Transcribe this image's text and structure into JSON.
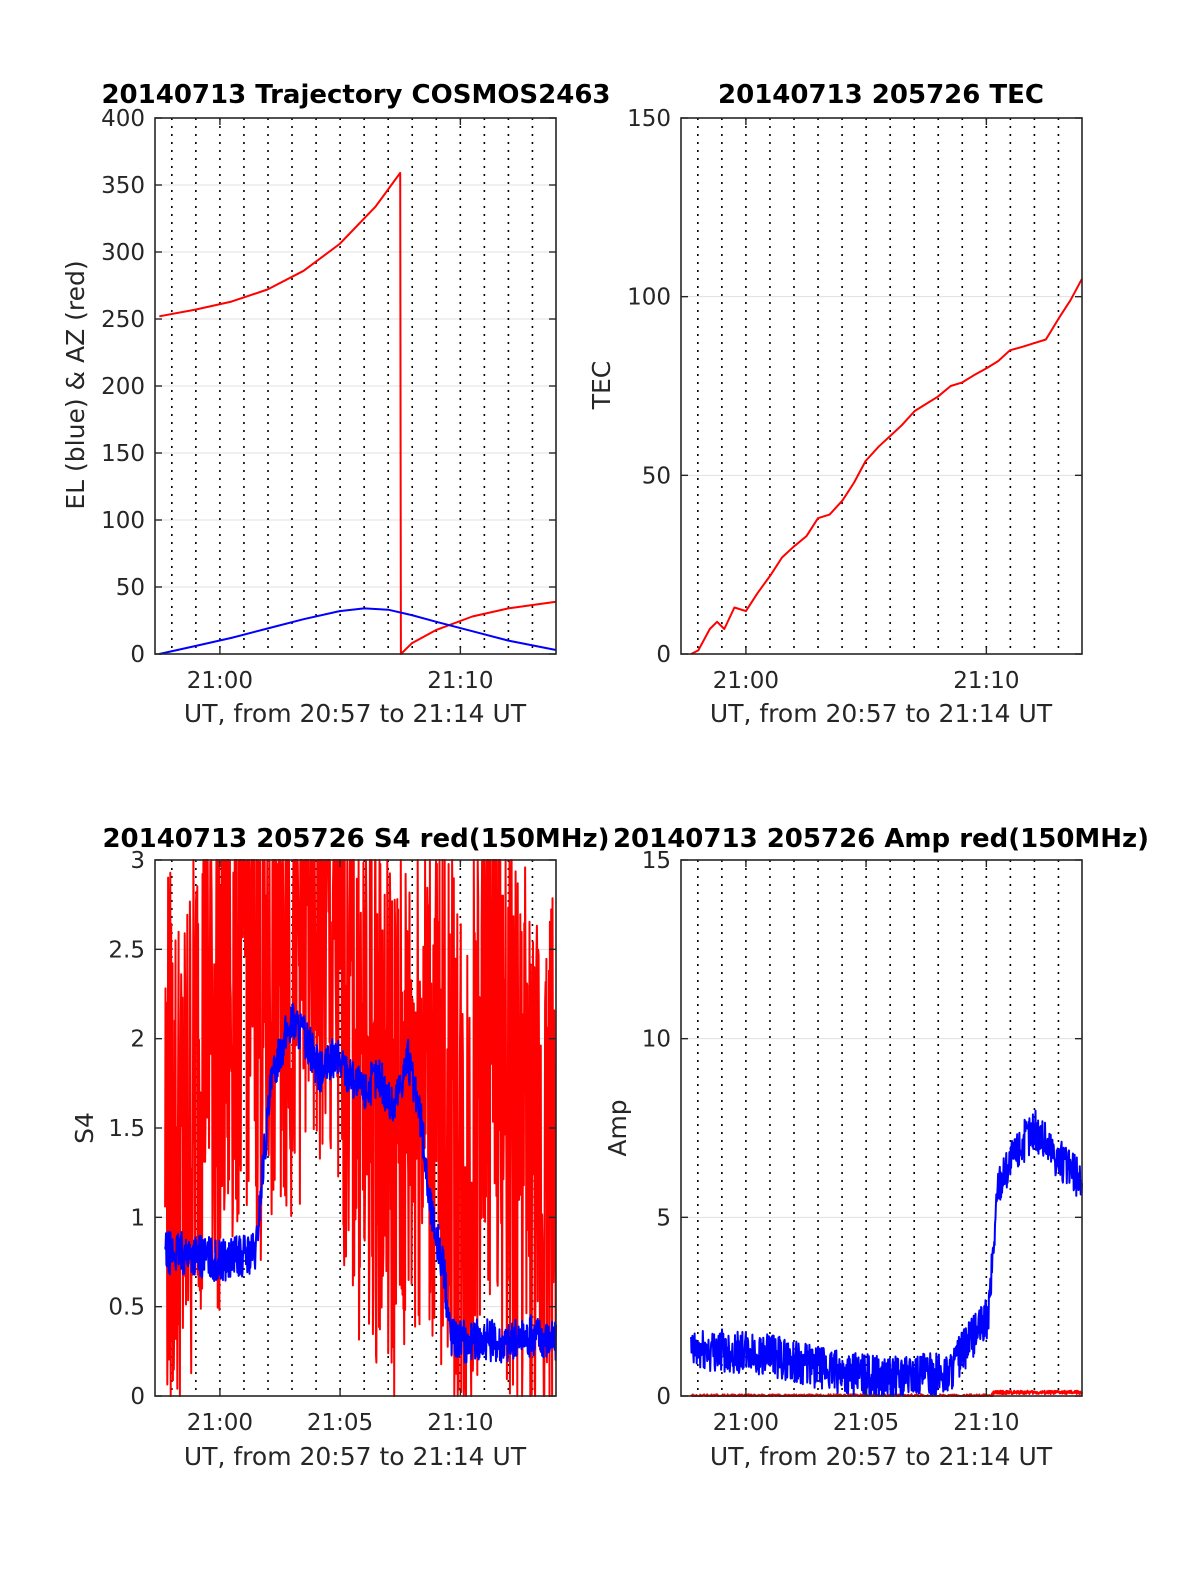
{
  "chart_data": [
    {
      "type": "line",
      "title": "20140713 Trajectory COSMOS2463",
      "xlabel": "UT, from 20:57 to 21:14 UT",
      "ylabel": "EL (blue) & AZ (red)",
      "xlim": [
        20.955,
        21.233
      ],
      "ylim": [
        0,
        400
      ],
      "yticks": [
        0,
        50,
        100,
        150,
        200,
        250,
        300,
        350,
        400
      ],
      "xticks": [
        {
          "v": 21.0,
          "label": "21:00"
        },
        {
          "v": 21.1667,
          "label": "21:10"
        }
      ],
      "grid": true,
      "series": [
        {
          "color": "#ff0000",
          "x": [
            20.958,
            20.983,
            21.008,
            21.033,
            21.058,
            21.083,
            21.108,
            21.125,
            21.1255,
            21.133,
            21.15,
            21.175,
            21.2,
            21.233
          ],
          "y": [
            252,
            257,
            263,
            272,
            286,
            306,
            334,
            359,
            0,
            8,
            18,
            28,
            34,
            39
          ]
        },
        {
          "color": "#0000ff",
          "x": [
            20.958,
            20.983,
            21.008,
            21.033,
            21.058,
            21.083,
            21.1,
            21.117,
            21.133,
            21.15,
            21.175,
            21.2,
            21.233
          ],
          "y": [
            0,
            6,
            12,
            19,
            26,
            32,
            34,
            33,
            29,
            24,
            17,
            10,
            3
          ]
        }
      ]
    },
    {
      "type": "line",
      "title": "20140713 205726 TEC",
      "xlabel": "UT, from 20:57 to 21:14 UT",
      "ylabel": "TEC",
      "xlim": [
        20.955,
        21.233
      ],
      "ylim": [
        0,
        150
      ],
      "yticks": [
        0,
        50,
        100,
        150
      ],
      "xticks": [
        {
          "v": 21.0,
          "label": "21:00"
        },
        {
          "v": 21.1667,
          "label": "21:10"
        }
      ],
      "grid": true,
      "series": [
        {
          "color": "#ff0000",
          "x": [
            20.962,
            20.967,
            20.975,
            20.98,
            20.985,
            20.992,
            21.0,
            21.008,
            21.017,
            21.025,
            21.033,
            21.042,
            21.05,
            21.058,
            21.067,
            21.075,
            21.083,
            21.092,
            21.1,
            21.108,
            21.117,
            21.125,
            21.133,
            21.142,
            21.15,
            21.158,
            21.167,
            21.175,
            21.183,
            21.192,
            21.2,
            21.208,
            21.217,
            21.225,
            21.233
          ],
          "y": [
            0,
            1,
            7,
            9,
            7,
            13,
            12,
            17,
            22,
            27,
            30,
            33,
            38,
            39,
            43,
            48,
            54,
            58,
            61,
            64,
            68,
            70,
            72,
            75,
            76,
            78,
            80,
            82,
            85,
            86,
            87,
            88,
            94,
            99,
            105
          ]
        }
      ]
    },
    {
      "type": "line",
      "title": "20140713 205726 S4 red(150MHz)",
      "xlabel": "UT, from 20:57 to 21:14 UT",
      "ylabel": "S4",
      "xlim": [
        20.955,
        21.233
      ],
      "ylim": [
        0,
        3
      ],
      "yticks": [
        0,
        0.5,
        1,
        1.5,
        2,
        2.5,
        3
      ],
      "xticks": [
        {
          "v": 21.0,
          "label": "21:00"
        },
        {
          "v": 21.0833,
          "label": "21:05"
        },
        {
          "v": 21.1667,
          "label": "21:10"
        }
      ],
      "grid": true,
      "series": [
        {
          "color": "#ff0000",
          "x": [
            20.962,
            20.975,
            20.99,
            21.0,
            21.01,
            21.02,
            21.03,
            21.04,
            21.05,
            21.06,
            21.07,
            21.08,
            21.09,
            21.1,
            21.11,
            21.12,
            21.13,
            21.14,
            21.15,
            21.16,
            21.17,
            21.18,
            21.19,
            21.2,
            21.21,
            21.22,
            21.233
          ],
          "y": [
            1.5,
            1.2,
            2.3,
            2.0,
            2.4,
            2.7,
            2.2,
            2.6,
            2.5,
            2.8,
            2.7,
            2.4,
            2.2,
            1.7,
            1.8,
            1.5,
            1.6,
            2.0,
            1.7,
            1.6,
            1.2,
            1.8,
            2.2,
            1.6,
            1.4,
            1.2,
            1.5
          ],
          "noise": 1.6
        },
        {
          "color": "#0000ff",
          "x": [
            20.962,
            20.975,
            20.99,
            21.0,
            21.01,
            21.025,
            21.03,
            21.035,
            21.04,
            21.05,
            21.06,
            21.07,
            21.08,
            21.09,
            21.1,
            21.11,
            21.12,
            21.13,
            21.14,
            21.145,
            21.15,
            21.155,
            21.16,
            21.17,
            21.18,
            21.2,
            21.22,
            21.233
          ],
          "y": [
            0.8,
            0.8,
            0.78,
            0.75,
            0.78,
            0.8,
            1.3,
            1.7,
            1.9,
            2.1,
            2.0,
            1.8,
            1.9,
            1.8,
            1.7,
            1.8,
            1.6,
            1.9,
            1.5,
            1.1,
            0.9,
            0.7,
            0.35,
            0.3,
            0.32,
            0.3,
            0.35,
            0.3
          ],
          "noise": 0.12
        }
      ]
    },
    {
      "type": "line",
      "title": "20140713 205726 Amp red(150MHz)",
      "xlabel": "UT, from 20:57 to 21:14 UT",
      "ylabel": "Amp",
      "xlim": [
        20.955,
        21.233
      ],
      "ylim": [
        0,
        15
      ],
      "yticks": [
        0,
        5,
        10,
        15
      ],
      "xticks": [
        {
          "v": 21.0,
          "label": "21:00"
        },
        {
          "v": 21.0833,
          "label": "21:05"
        },
        {
          "v": 21.1667,
          "label": "21:10"
        }
      ],
      "grid": true,
      "series": [
        {
          "color": "#ff0000",
          "x": [
            20.962,
            21.17,
            21.172,
            21.233
          ],
          "y": [
            0,
            0,
            0.1,
            0.1
          ],
          "noise": 0.05
        },
        {
          "color": "#0000ff",
          "x": [
            20.962,
            20.98,
            21.0,
            21.02,
            21.04,
            21.06,
            21.08,
            21.1,
            21.12,
            21.14,
            21.15,
            21.16,
            21.168,
            21.175,
            21.19,
            21.2,
            21.21,
            21.22,
            21.233
          ],
          "y": [
            1.2,
            1.3,
            1.2,
            1.1,
            0.9,
            0.7,
            0.6,
            0.5,
            0.6,
            0.6,
            1.2,
            1.8,
            2.2,
            6,
            7,
            7.5,
            7,
            6.5,
            6
          ],
          "noise": 0.6
        }
      ]
    }
  ]
}
